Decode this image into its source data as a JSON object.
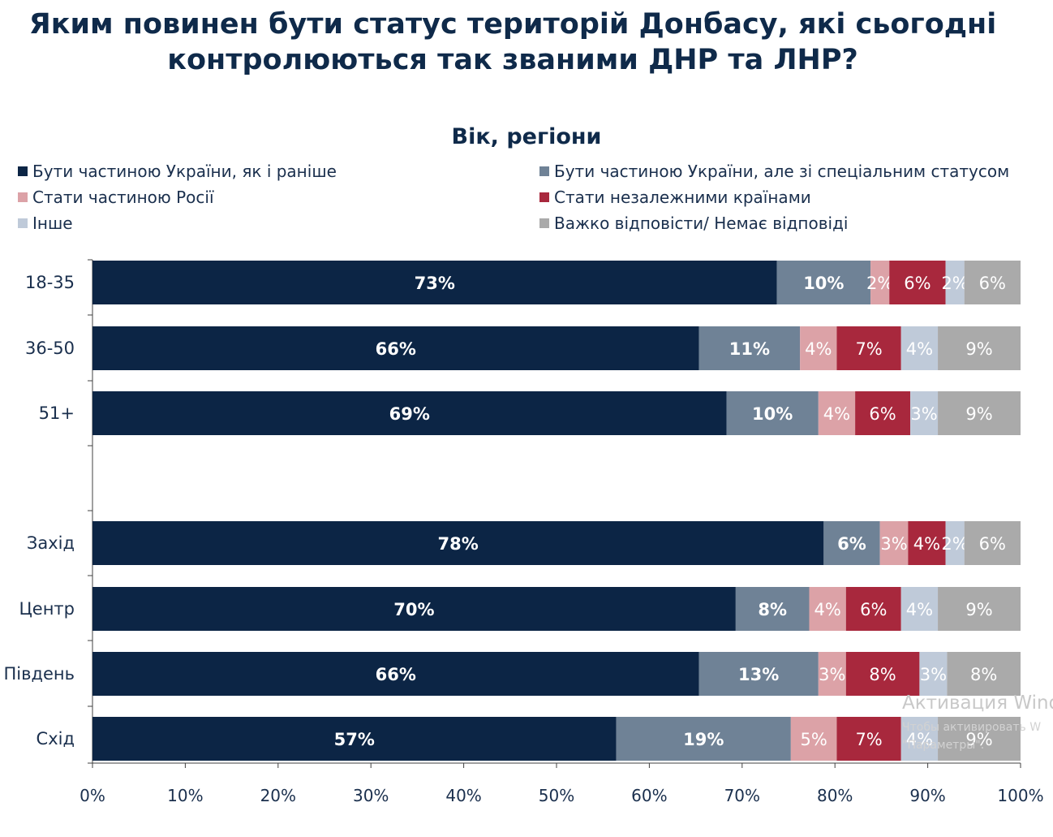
{
  "title_line1": "Яким повинен бути статус територій Донбасу, які сьогодні",
  "title_line2": "контролюються так званими ДНР та ЛНР?",
  "chart_data": {
    "type": "bar",
    "orientation": "horizontal",
    "stacked": true,
    "title": "Вік, регіони",
    "categories": [
      "18-35",
      "36-50",
      "51+",
      "",
      "Захід",
      "Центр",
      "Південь",
      "Схід"
    ],
    "series": [
      {
        "name": "Бути частиною України, як і раніше",
        "color": "#0c2545",
        "label_color": "#ffffff",
        "values": [
          73,
          66,
          69,
          null,
          78,
          70,
          66,
          57
        ]
      },
      {
        "name": "Бути частиною України, але зі спеціальним статусом",
        "color": "#6f8296",
        "label_color": "#ffffff",
        "values": [
          10,
          11,
          10,
          null,
          6,
          8,
          13,
          19
        ]
      },
      {
        "name": "Стати частиною Росії",
        "color": "#dca2a7",
        "label_color": "#ffffff",
        "values": [
          2,
          4,
          4,
          null,
          3,
          4,
          3,
          5
        ]
      },
      {
        "name": "Стати незалежними країнами",
        "color": "#a8283d",
        "label_color": "#ffffff",
        "values": [
          6,
          7,
          6,
          null,
          4,
          6,
          8,
          7
        ]
      },
      {
        "name": "Інше",
        "color": "#bfcad9",
        "label_color": "#ffffff",
        "values": [
          2,
          4,
          3,
          null,
          2,
          4,
          3,
          4
        ]
      },
      {
        "name": "Важко відповісти/ Немає відповіді",
        "color": "#aaaaaa",
        "label_color": "#ffffff",
        "values": [
          6,
          9,
          9,
          null,
          6,
          9,
          8,
          9
        ]
      }
    ],
    "xlim": [
      0,
      100
    ],
    "x_ticks": [
      "0%",
      "10%",
      "20%",
      "30%",
      "40%",
      "50%",
      "60%",
      "70%",
      "80%",
      "90%",
      "100%"
    ],
    "grid": false,
    "legend_position": "top"
  },
  "legend": [
    {
      "label": "Бути частиною України, як і раніше",
      "color": "#0c2545"
    },
    {
      "label": "Бути частиною України, але зі спеціальним статусом",
      "color": "#6f8296"
    },
    {
      "label": "Стати частиною Росії",
      "color": "#dca2a7"
    },
    {
      "label": "Стати незалежними країнами",
      "color": "#a8283d"
    },
    {
      "label": "Інше",
      "color": "#bfcad9"
    },
    {
      "label": "Важко відповісти/ Немає відповіді",
      "color": "#aaaaaa"
    }
  ],
  "watermark": {
    "line1": "Активация Wind",
    "line2": "Чтобы активировать W",
    "line3": "\"Параметры\"."
  }
}
